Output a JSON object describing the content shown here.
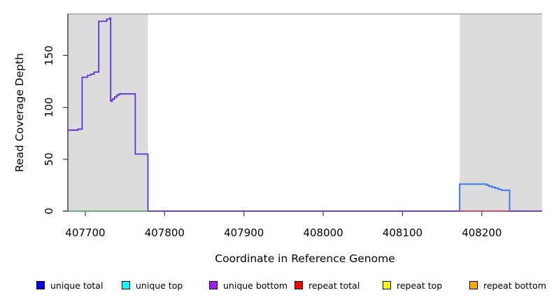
{
  "figure": {
    "xlabel": "Coordinate in Reference Genome",
    "ylabel": "Read Coverage Depth"
  },
  "legend": [
    {
      "label": "unique total",
      "color": "#0000ff"
    },
    {
      "label": "unique top",
      "color": "#00ffff"
    },
    {
      "label": "unique bottom",
      "color": "#a020f0"
    },
    {
      "label": "repeat total",
      "color": "#ff0000"
    },
    {
      "label": "repeat top",
      "color": "#ffff00"
    },
    {
      "label": "repeat bottom",
      "color": "#ffa500"
    }
  ],
  "chart_data": {
    "type": "line",
    "title": "",
    "xlabel": "Coordinate in Reference Genome",
    "ylabel": "Read Coverage Depth",
    "xlim": [
      407678,
      408276
    ],
    "ylim": [
      0,
      190
    ],
    "x_ticks": [
      407700,
      407800,
      407900,
      408000,
      408100,
      408200
    ],
    "y_ticks": [
      0,
      50,
      100,
      150
    ],
    "grid": false,
    "legend_position": "bottom",
    "colors": {
      "shaded_region": "#dcdcdc",
      "plot_top_border": "#a6a6a6",
      "axis": "#1a1a1a",
      "tick_text": "#000000"
    },
    "shaded_regions": [
      {
        "name": "repeat-region-left",
        "x_start": 407678,
        "x_end": 407779,
        "color": "#dcdcdc"
      },
      {
        "name": "repeat-region-right",
        "x_start": 408172,
        "x_end": 408276,
        "color": "#dcdcdc"
      }
    ],
    "series": [
      {
        "name": "unique bottom",
        "color": "#5c2fe0",
        "width": 1.8,
        "points": [
          [
            407678,
            78
          ],
          [
            407691,
            79
          ],
          [
            407696,
            129
          ],
          [
            407703,
            131
          ],
          [
            407707,
            132
          ],
          [
            407711,
            134
          ],
          [
            407717,
            183
          ],
          [
            407727,
            185
          ],
          [
            407731,
            186
          ],
          [
            407732,
            106
          ],
          [
            407734,
            108
          ],
          [
            407737,
            110
          ],
          [
            407740,
            112
          ],
          [
            407743,
            113
          ],
          [
            407763,
            55
          ],
          [
            407779,
            0
          ],
          [
            408276,
            0
          ]
        ]
      },
      {
        "name": "unique top baseline",
        "color": "#4db563",
        "width": 1.6,
        "points": [
          [
            407678,
            0
          ],
          [
            407779,
            0
          ]
        ]
      },
      {
        "name": "repeat total baseline",
        "color": "#e8495a",
        "width": 1.6,
        "points": [
          [
            408172,
            0
          ],
          [
            408234,
            0
          ]
        ]
      },
      {
        "name": "unique total",
        "color": "#3d7ce8",
        "width": 2,
        "points": [
          [
            408172,
            0
          ],
          [
            408172,
            26
          ],
          [
            408206,
            25
          ],
          [
            408209,
            24
          ],
          [
            408213,
            23
          ],
          [
            408217,
            22
          ],
          [
            408221,
            21
          ],
          [
            408225,
            20
          ],
          [
            408235,
            20
          ],
          [
            408235,
            0
          ]
        ]
      }
    ]
  }
}
